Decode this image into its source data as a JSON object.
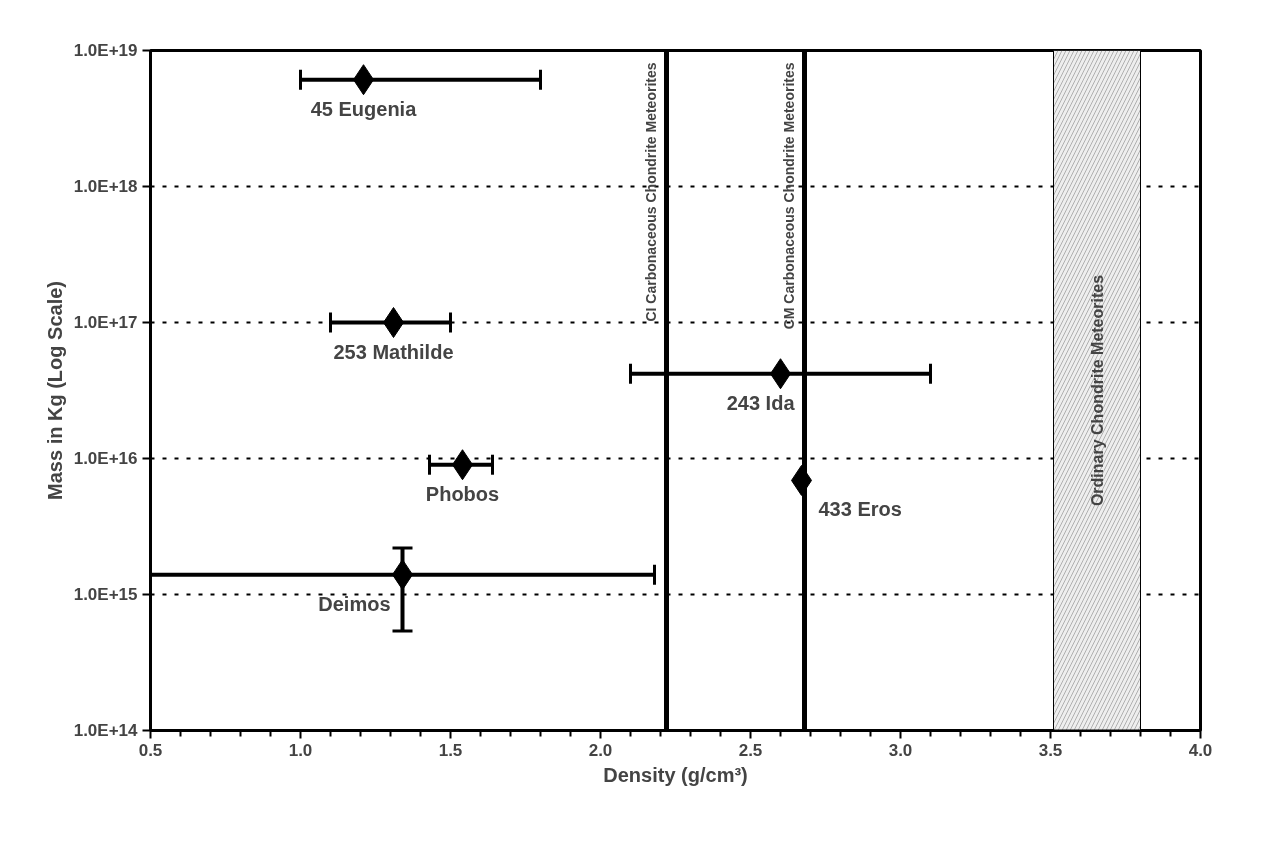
{
  "chart_data": {
    "type": "scatter",
    "xlabel": "Density (g/cm³)",
    "ylabel": "Mass in Kg (Log Scale)",
    "log": "y",
    "marker": "diamond",
    "grid": "y",
    "x": [
      1.21,
      1.31,
      2.6,
      1.54,
      2.67,
      1.34
    ],
    "series": [
      {
        "color": "#000000",
        "values": [
          6.1e+18,
          1e+17,
          4.2e+16,
          9000000000000000.0,
          6900000000000000.0,
          1400000000000000.0
        ],
        "xerrors": [
          [
            1.0,
            1.8
          ],
          [
            1.1,
            1.5
          ],
          [
            2.1,
            3.1
          ],
          [
            1.43,
            1.64
          ],
          null,
          [
            0.5,
            2.18
          ]
        ],
        "errors": [
          null,
          null,
          null,
          null,
          null,
          [
            540000000000000.0,
            2200000000000000.0
          ]
        ]
      }
    ],
    "annotations": [
      {
        "text": "45 Eugenia",
        "x": 1.21,
        "y": 6.1e+18
      },
      {
        "text": "253 Mathilde",
        "x": 1.31,
        "y": 1e+17
      },
      {
        "text": "243 Ida",
        "x": 2.6,
        "y": 4.2e+16
      },
      {
        "text": "Phobos",
        "x": 1.54,
        "y": 9000000000000000.0
      },
      {
        "text": "433 Eros",
        "x": 2.67,
        "y": 6900000000000000.0
      },
      {
        "text": "Deimos",
        "x": 1.34,
        "y": 1400000000000000.0
      }
    ],
    "ref_lines": [
      {
        "axis": "x",
        "value": 2.22,
        "label": "CI Carbonaceous Chondrite Meteorites",
        "color": "#000000"
      },
      {
        "axis": "x",
        "value": 2.68,
        "label": "CM Carbonaceous Chondrite Meteorites",
        "color": "#000000"
      }
    ],
    "bands": [
      {
        "axis": "x",
        "from": 3.51,
        "to": 3.8,
        "label": "Ordinary Chondrite Meteorites",
        "color": "#eeeeee"
      }
    ],
    "xlim": [
      0.5,
      4.0
    ],
    "ylim": [
      100000000000000.0,
      1e+19
    ],
    "xticks": [
      {
        "value": 0.5,
        "label": "0.5"
      },
      {
        "value": 0.6,
        "label": null
      },
      {
        "value": 0.7,
        "label": null
      },
      {
        "value": 0.8,
        "label": null
      },
      {
        "value": 0.9,
        "label": null
      },
      {
        "value": 1.0,
        "label": "1.0"
      },
      {
        "value": 1.1,
        "label": null
      },
      {
        "value": 1.2,
        "label": null
      },
      {
        "value": 1.3,
        "label": null
      },
      {
        "value": 1.4,
        "label": null
      },
      {
        "value": 1.5,
        "label": "1.5"
      },
      {
        "value": 1.6,
        "label": null
      },
      {
        "value": 1.7,
        "label": null
      },
      {
        "value": 1.8,
        "label": null
      },
      {
        "value": 1.9,
        "label": null
      },
      {
        "value": 2.0,
        "label": "2.0"
      },
      {
        "value": 2.1,
        "label": null
      },
      {
        "value": 2.2,
        "label": null
      },
      {
        "value": 2.3,
        "label": null
      },
      {
        "value": 2.4,
        "label": null
      },
      {
        "value": 2.5,
        "label": "2.5"
      },
      {
        "value": 2.6,
        "label": null
      },
      {
        "value": 2.7,
        "label": null
      },
      {
        "value": 2.8,
        "label": null
      },
      {
        "value": 2.9,
        "label": null
      },
      {
        "value": 3.0,
        "label": "3.0"
      },
      {
        "value": 3.1,
        "label": null
      },
      {
        "value": 3.2,
        "label": null
      },
      {
        "value": 3.3,
        "label": null
      },
      {
        "value": 3.4,
        "label": null
      },
      {
        "value": 3.5,
        "label": "3.5"
      },
      {
        "value": 3.6,
        "label": null
      },
      {
        "value": 3.7,
        "label": null
      },
      {
        "value": 3.8,
        "label": null
      },
      {
        "value": 3.9,
        "label": null
      },
      {
        "value": 4.0,
        "label": "4.0"
      }
    ],
    "yticks": [
      {
        "value": 100000000000000.0,
        "label": "1.0E+14"
      },
      {
        "value": 1000000000000000.0,
        "label": "1.0E+15"
      },
      {
        "value": 1e+16,
        "label": "1.0E+16"
      },
      {
        "value": 1e+17,
        "label": "1.0E+17"
      },
      {
        "value": 1e+18,
        "label": "1.0E+18"
      },
      {
        "value": 1e+19,
        "label": "1.0E+19"
      }
    ]
  }
}
